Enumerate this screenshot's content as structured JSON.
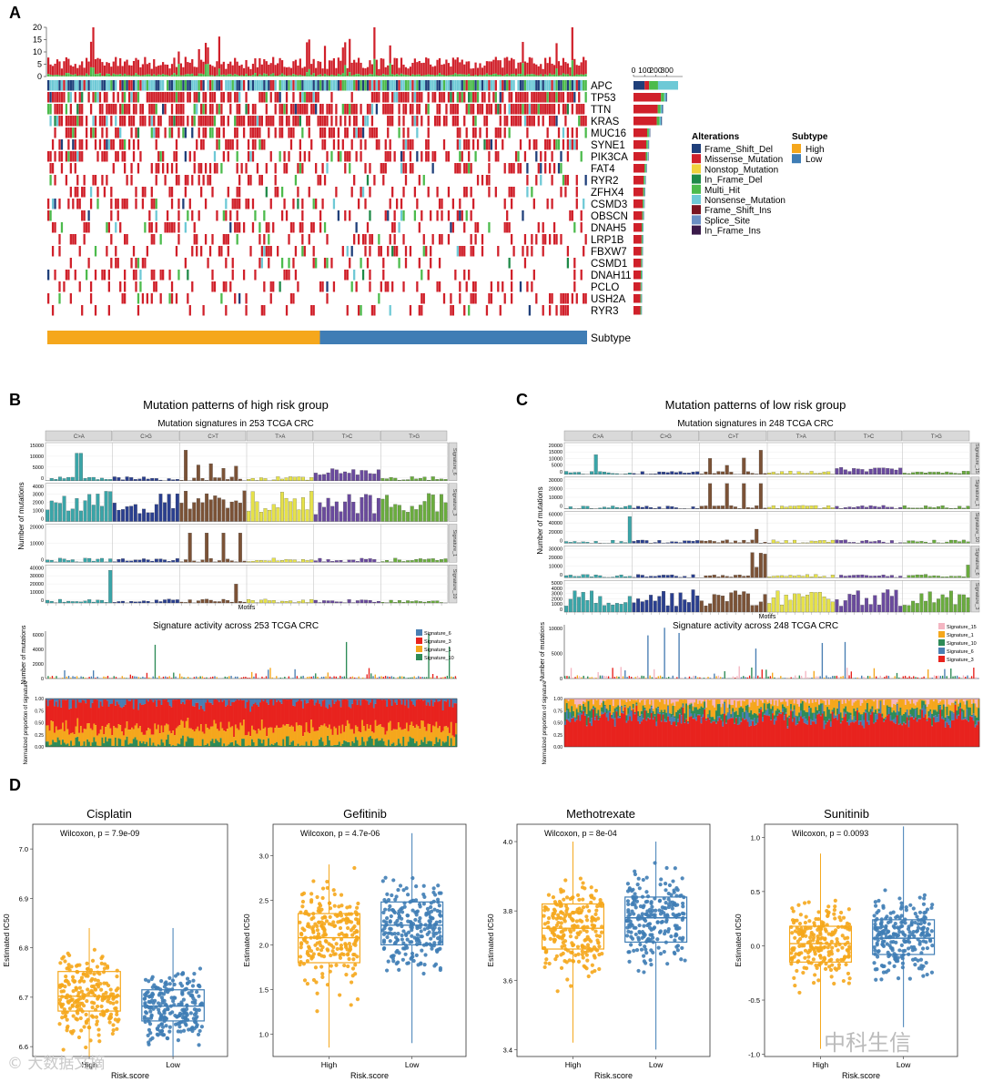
{
  "colors": {
    "Frame_Shift_Del": "#1f3f7a",
    "Missense_Mutation": "#d0202a",
    "Nonstop_Mutation": "#f0d23c",
    "In_Frame_Del": "#1e8a48",
    "Multi_Hit": "#4cbb4c",
    "Nonsense_Mutation": "#6ec9d6",
    "Frame_Shift_Ins": "#7a1420",
    "Splice_Site": "#6a8fc4",
    "In_Frame_Ins": "#3a1a4a",
    "high": "#f5a71c",
    "low": "#3f7db5",
    "motif": [
      "#3aa5a8",
      "#2a3f8f",
      "#7b5236",
      "#e6e24a",
      "#6a4a9e",
      "#6aac3e"
    ],
    "sig_high": [
      "#4a7fb3",
      "#e8231e",
      "#f5a71c",
      "#2e8b57"
    ],
    "sig_low": [
      "#f4b6c2",
      "#f5a71c",
      "#2e8b57",
      "#4a7fb3",
      "#e8231e"
    ]
  },
  "panel_a": {
    "label": "A",
    "tmb_ticks": [
      "20",
      "15",
      "10",
      "5",
      "0"
    ],
    "bar_axis_ticks": [
      "0",
      "100",
      "200",
      "300"
    ],
    "genes": [
      "APC",
      "TP53",
      "TTN",
      "KRAS",
      "MUC16",
      "SYNE1",
      "PIK3CA",
      "FAT4",
      "RYR2",
      "ZFHX4",
      "CSMD3",
      "OBSCN",
      "DNAH5",
      "LRP1B",
      "FBXW7",
      "CSMD1",
      "DNAH11",
      "PCLO",
      "USH2A",
      "RYR3"
    ],
    "gene_counts": [
      400,
      300,
      265,
      255,
      150,
      140,
      135,
      120,
      110,
      105,
      100,
      95,
      90,
      88,
      85,
      83,
      80,
      78,
      76,
      75
    ],
    "subtype_label": "Subtype",
    "legend_alterations_title": "Alterations",
    "alterations": [
      "Frame_Shift_Del",
      "Missense_Mutation",
      "Nonstop_Mutation",
      "In_Frame_Del",
      "Multi_Hit",
      "Nonsense_Mutation",
      "Frame_Shift_Ins",
      "Splice_Site",
      "In_Frame_Ins"
    ],
    "legend_subtype_title": "Subtype",
    "subtypes": [
      "High",
      "Low"
    ],
    "high_fraction": 0.505
  },
  "panel_b": {
    "label": "B",
    "title": "Mutation patterns of high risk group",
    "subtitle": "Mutation signatures in 253 TCGA CRC",
    "motifs": [
      "C>A",
      "C>G",
      "C>T",
      "T>A",
      "T>C",
      "T>G"
    ],
    "signatures": [
      "Signature_6",
      "Signature_3",
      "Signature_1",
      "Signature_10"
    ],
    "sig_yticks": [
      [
        "15000",
        "10000",
        "5000",
        "0"
      ],
      [
        "4000",
        "3000",
        "2000",
        "1000",
        "0"
      ],
      [
        "20000",
        "10000",
        "0"
      ],
      [
        "40000",
        "30000",
        "20000",
        "10000",
        "0"
      ]
    ],
    "ylabel": "Number of mutations",
    "xlabel": "Motifs",
    "activity_title": "Signature activity across 253 TCGA CRC",
    "activity_ylabel": "Number of mutations",
    "activity_yticks": [
      "6000",
      "4000",
      "2000",
      "0"
    ],
    "prop_ylabel": "Normalized proportion of signature",
    "prop_yticks": [
      "1.00",
      "0.75",
      "0.50",
      "0.25",
      "0.00"
    ],
    "legend": [
      "Signature_6",
      "Signature_3",
      "Signature_1",
      "Signature_10"
    ]
  },
  "panel_c": {
    "label": "C",
    "title": "Mutation patterns of low risk group",
    "subtitle": "Mutation signatures in 248 TCGA CRC",
    "motifs": [
      "C>A",
      "C>G",
      "C>T",
      "T>A",
      "T>C",
      "T>G"
    ],
    "signatures": [
      "Signature_15",
      "Signature_1",
      "Signature_10",
      "Signature_6",
      "Signature_3"
    ],
    "sig_yticks": [
      [
        "20000",
        "15000",
        "10000",
        "5000",
        "0"
      ],
      [
        "30000",
        "20000",
        "10000",
        "0"
      ],
      [
        "60000",
        "40000",
        "20000",
        "0"
      ],
      [
        "30000",
        "20000",
        "10000",
        "0"
      ],
      [
        "5000",
        "4000",
        "3000",
        "2000",
        "1000",
        "0"
      ]
    ],
    "ylabel": "Number of mutations",
    "xlabel": "Motifs",
    "activity_title": "Signature activity across 248 TCGA CRC",
    "activity_ylabel": "Number of mutations",
    "activity_yticks": [
      "10000",
      "5000",
      "0"
    ],
    "prop_ylabel": "Normalized proportion of signature",
    "prop_yticks": [
      "1.00",
      "0.75",
      "0.50",
      "0.25",
      "0.00"
    ],
    "legend": [
      "Signature_15",
      "Signature_1",
      "Signature_10",
      "Signature_6",
      "Signature_3"
    ]
  },
  "chart_data": [
    {
      "type": "box",
      "title": "Cisplatin",
      "annotation": "Wilcoxon, p = 7.9e-09",
      "xlabel": "Risk.score",
      "ylabel": "Estimated IC50",
      "categories": [
        "High",
        "Low"
      ],
      "ylim": [
        6.58,
        7.05
      ],
      "yticks": [
        6.6,
        6.7,
        6.8,
        6.9,
        7.0
      ],
      "boxes": [
        {
          "name": "High",
          "q1": 6.672,
          "median": 6.702,
          "q3": 6.752,
          "whisker_low": 6.58,
          "whisker_high": 6.84
        },
        {
          "name": "Low",
          "q1": 6.652,
          "median": 6.682,
          "q3": 6.715,
          "whisker_low": 6.58,
          "whisker_high": 6.84
        }
      ]
    },
    {
      "type": "box",
      "title": "Gefitinib",
      "annotation": "Wilcoxon, p = 4.7e-06",
      "xlabel": "Risk.score",
      "ylabel": "Estimated IC50",
      "categories": [
        "High",
        "Low"
      ],
      "ylim": [
        0.75,
        3.35
      ],
      "yticks": [
        1.0,
        1.5,
        2.0,
        2.5,
        3.0
      ],
      "boxes": [
        {
          "name": "High",
          "q1": 1.8,
          "median": 2.08,
          "q3": 2.35,
          "whisker_low": 0.85,
          "whisker_high": 2.9
        },
        {
          "name": "Low",
          "q1": 2.0,
          "median": 2.22,
          "q3": 2.48,
          "whisker_low": 0.9,
          "whisker_high": 3.25
        }
      ]
    },
    {
      "type": "box",
      "title": "Methotrexate",
      "annotation": "Wilcoxon, p = 8e-04",
      "xlabel": "Risk.score",
      "ylabel": "Estimated IC50",
      "categories": [
        "High",
        "Low"
      ],
      "ylim": [
        3.38,
        4.05
      ],
      "yticks": [
        3.4,
        3.6,
        3.8,
        4.0
      ],
      "boxes": [
        {
          "name": "High",
          "q1": 3.69,
          "median": 3.75,
          "q3": 3.82,
          "whisker_low": 3.42,
          "whisker_high": 4.0
        },
        {
          "name": "Low",
          "q1": 3.71,
          "median": 3.78,
          "q3": 3.84,
          "whisker_low": 3.4,
          "whisker_high": 4.0
        }
      ]
    },
    {
      "type": "box",
      "title": "Sunitinib",
      "annotation": "Wilcoxon, p = 0.0093",
      "xlabel": "Risk.score",
      "ylabel": "Estimated IC50",
      "categories": [
        "High",
        "Low"
      ],
      "ylim": [
        -1.02,
        1.12
      ],
      "yticks": [
        -1.0,
        -0.5,
        0.0,
        0.5,
        1.0
      ],
      "boxes": [
        {
          "name": "High",
          "q1": -0.15,
          "median": 0.02,
          "q3": 0.18,
          "whisker_low": -0.95,
          "whisker_high": 0.85
        },
        {
          "name": "Low",
          "q1": -0.08,
          "median": 0.07,
          "q3": 0.24,
          "whisker_low": -0.75,
          "whisker_high": 1.1
        }
      ]
    }
  ],
  "panel_d": {
    "label": "D"
  },
  "watermarks": {
    "left": "© 大数据文摘",
    "right": "中科生信"
  }
}
